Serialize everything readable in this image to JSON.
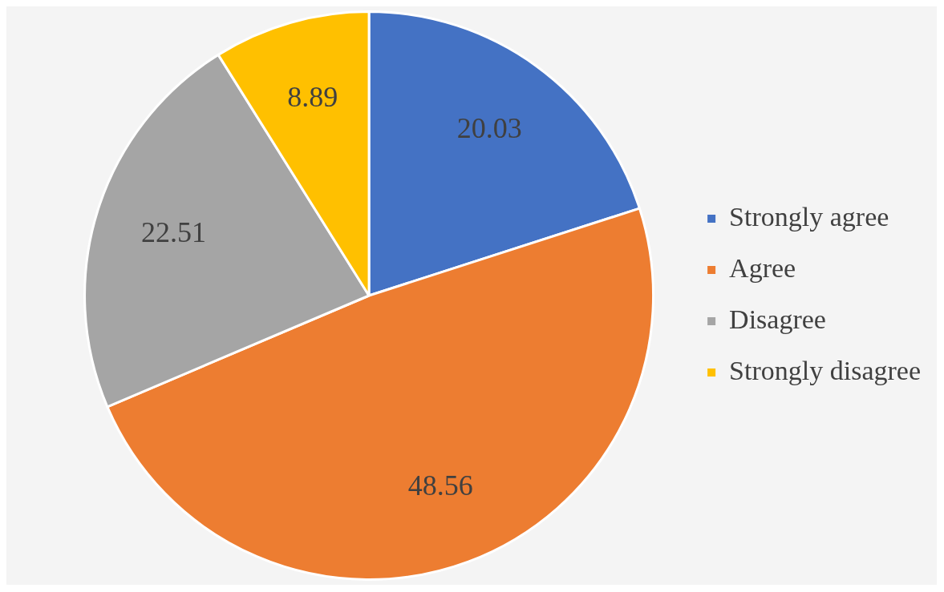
{
  "chart_data": {
    "type": "pie",
    "categories": [
      "Strongly agree",
      "Agree",
      "Disagree",
      "Strongly disagree"
    ],
    "values": [
      20.03,
      48.56,
      22.51,
      8.89
    ],
    "colors": [
      "#4472c4",
      "#ed7d31",
      "#a5a5a5",
      "#ffc000"
    ],
    "data_labels": true,
    "legend": "right"
  }
}
